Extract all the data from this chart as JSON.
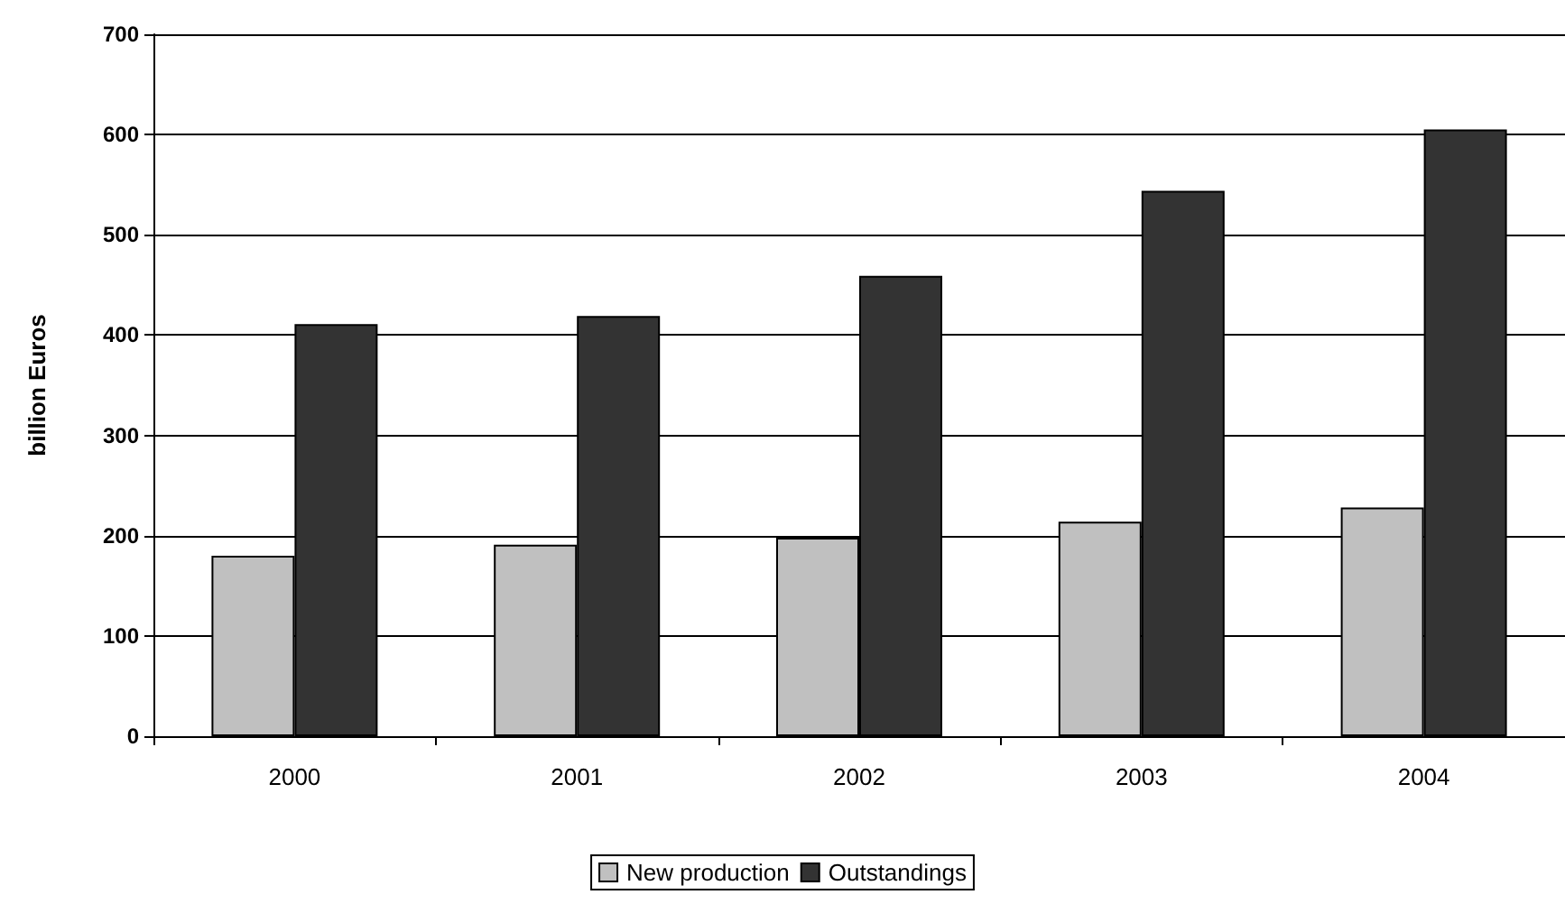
{
  "chart_data": {
    "type": "bar",
    "ylabel": "billion Euros",
    "categories": [
      "2000",
      "2001",
      "2002",
      "2003",
      "2004"
    ],
    "series": [
      {
        "name": "New production",
        "color": "#c0c0c0",
        "values": [
          180,
          191,
          198,
          214,
          228
        ]
      },
      {
        "name": "Outstandings",
        "color": "#333333",
        "values": [
          411,
          419,
          459,
          544,
          605
        ]
      }
    ],
    "ylim": [
      0,
      700
    ],
    "yticks": [
      0,
      100,
      200,
      300,
      400,
      500,
      600,
      700
    ],
    "grid": "y",
    "legend": "bottom"
  }
}
